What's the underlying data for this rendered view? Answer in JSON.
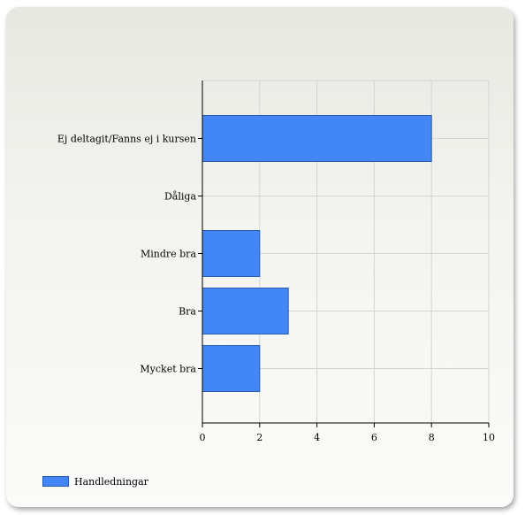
{
  "chart_data": {
    "type": "bar",
    "orientation": "horizontal",
    "categories": [
      "Ej deltagit/Fanns ej i kursen",
      "Dåliga",
      "Mindre bra",
      "Bra",
      "Mycket bra"
    ],
    "series": [
      {
        "name": "Handledningar",
        "values": [
          8,
          0,
          2,
          3,
          2
        ],
        "color": "#4287f5"
      }
    ],
    "xlim": [
      0,
      10
    ],
    "xticks": [
      0,
      2,
      4,
      6,
      8,
      10
    ],
    "grid": true,
    "legend_position": "bottom-left"
  }
}
